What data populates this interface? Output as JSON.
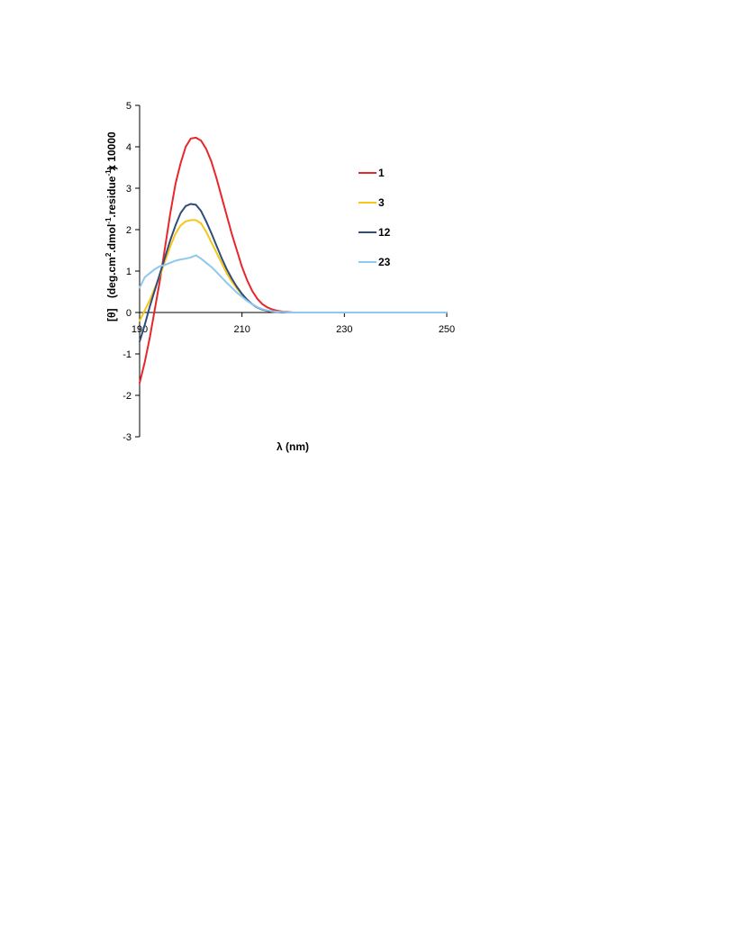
{
  "chart_data": {
    "type": "line",
    "xlabel": "λ (nm)",
    "ylabel": "[θ]  (deg.cm².dmol⁻¹.residue⁻¹)",
    "ylabel_parts": {
      "theta": "[θ]",
      "open": "(deg.cm",
      "sup1": "2",
      "mid": ".dmol",
      "sup2": "-1",
      "end": ".residue",
      "sup3": "-1",
      "close": ")"
    },
    "y_multiplier_label": "x 10000",
    "xlim": [
      190,
      250
    ],
    "ylim": [
      -3,
      5
    ],
    "x_ticks": [
      190,
      210,
      230,
      250
    ],
    "y_ticks": [
      -3,
      -2,
      -1,
      0,
      1,
      2,
      3,
      4,
      5
    ],
    "x_tick_labels": [
      "190",
      "210",
      "230",
      "250"
    ],
    "y_tick_labels": [
      "-3",
      "-2",
      "-1",
      "0",
      "1",
      "2",
      "3",
      "4",
      "5"
    ],
    "legend_position": "right",
    "grid": false,
    "series": [
      {
        "name": "1",
        "color": "#e8262b",
        "x": [
          190,
          191,
          192,
          193,
          194,
          195,
          196,
          197,
          198,
          199,
          200,
          201,
          202,
          203,
          204,
          205,
          206,
          207,
          208,
          209,
          210,
          211,
          212,
          213,
          214,
          215,
          216,
          217,
          218,
          219,
          220,
          225,
          230,
          235,
          240,
          245,
          250
        ],
        "y": [
          -1.7,
          -1.2,
          -0.6,
          0.1,
          0.8,
          1.6,
          2.4,
          3.1,
          3.6,
          4.0,
          4.2,
          4.22,
          4.15,
          3.95,
          3.65,
          3.25,
          2.8,
          2.35,
          1.9,
          1.5,
          1.1,
          0.78,
          0.52,
          0.33,
          0.2,
          0.12,
          0.07,
          0.04,
          0.02,
          0.01,
          0.0,
          0.0,
          0.0,
          0.0,
          0.0,
          0.0,
          0.0
        ]
      },
      {
        "name": "3",
        "color": "#f5c518",
        "x": [
          190,
          191,
          192,
          193,
          194,
          195,
          196,
          197,
          198,
          199,
          200,
          201,
          202,
          203,
          204,
          205,
          206,
          207,
          208,
          209,
          210,
          211,
          212,
          213,
          214,
          215,
          216,
          217,
          218,
          219,
          220,
          225,
          230,
          235,
          240,
          245,
          250
        ],
        "y": [
          -0.2,
          0.05,
          0.3,
          0.6,
          0.9,
          1.25,
          1.6,
          1.9,
          2.1,
          2.2,
          2.23,
          2.23,
          2.15,
          1.95,
          1.7,
          1.45,
          1.2,
          0.95,
          0.75,
          0.58,
          0.43,
          0.3,
          0.2,
          0.12,
          0.07,
          0.04,
          0.02,
          0.01,
          0.0,
          0.0,
          0.0,
          0.0,
          0.0,
          0.0,
          0.0,
          0.0,
          0.0
        ]
      },
      {
        "name": "12",
        "color": "#2f4d7a",
        "x": [
          190,
          191,
          192,
          193,
          194,
          195,
          196,
          197,
          198,
          199,
          200,
          201,
          202,
          203,
          204,
          205,
          206,
          207,
          208,
          209,
          210,
          211,
          212,
          213,
          214,
          215,
          216,
          217,
          218,
          219,
          220,
          225,
          230,
          235,
          240,
          245,
          250
        ],
        "y": [
          -0.7,
          -0.3,
          0.15,
          0.55,
          0.95,
          1.35,
          1.75,
          2.1,
          2.4,
          2.57,
          2.62,
          2.6,
          2.45,
          2.2,
          1.92,
          1.62,
          1.32,
          1.05,
          0.82,
          0.62,
          0.45,
          0.31,
          0.2,
          0.12,
          0.07,
          0.04,
          0.02,
          0.01,
          0.0,
          0.0,
          0.0,
          0.0,
          0.0,
          0.0,
          0.0,
          0.0,
          0.0
        ]
      },
      {
        "name": "23",
        "color": "#8ec8ec",
        "x": [
          190,
          191,
          192,
          193,
          194,
          195,
          196,
          197,
          198,
          199,
          200,
          201,
          202,
          203,
          204,
          205,
          206,
          207,
          208,
          209,
          210,
          211,
          212,
          213,
          214,
          215,
          216,
          217,
          218,
          219,
          220,
          225,
          230,
          235,
          240,
          245,
          250
        ],
        "y": [
          0.6,
          0.85,
          0.95,
          1.05,
          1.12,
          1.15,
          1.2,
          1.25,
          1.28,
          1.3,
          1.33,
          1.38,
          1.3,
          1.2,
          1.1,
          0.98,
          0.85,
          0.72,
          0.6,
          0.48,
          0.38,
          0.28,
          0.2,
          0.13,
          0.08,
          0.05,
          0.03,
          0.02,
          0.01,
          0.0,
          0.0,
          0.0,
          0.0,
          0.0,
          0.0,
          0.0,
          0.0
        ]
      }
    ]
  }
}
